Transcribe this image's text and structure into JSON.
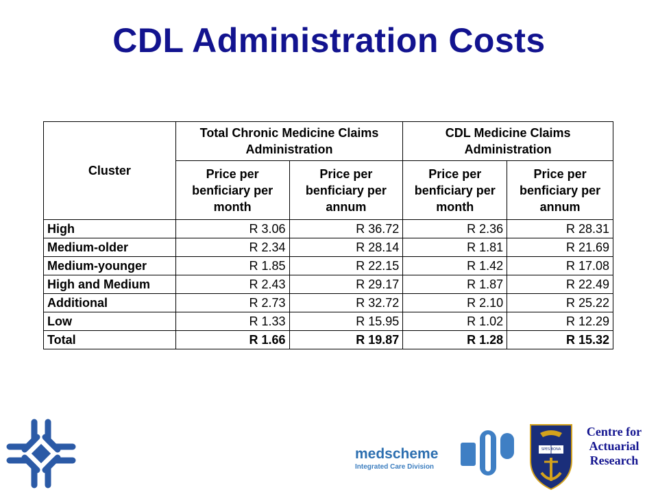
{
  "title": "CDL Administration Costs",
  "table": {
    "cluster_header": "Cluster",
    "groups": [
      "Total Chronic Medicine Claims Administration",
      "CDL Medicine Claims Administration"
    ],
    "subheaders": [
      "Price per benficiary per month",
      "Price per benficiary per annum",
      "Price per benficiary per month",
      "Price per benficiary per annum"
    ],
    "rows": [
      {
        "cluster": "High",
        "values": [
          "R 3.06",
          "R 36.72",
          "R 2.36",
          "R 28.31"
        ]
      },
      {
        "cluster": "Medium-older",
        "values": [
          "R 2.34",
          "R 28.14",
          "R 1.81",
          "R 21.69"
        ]
      },
      {
        "cluster": "Medium-younger",
        "values": [
          "R 1.85",
          "R 22.15",
          "R 1.42",
          "R 17.08"
        ]
      },
      {
        "cluster": "High and Medium",
        "values": [
          "R 2.43",
          "R 29.17",
          "R 1.87",
          "R 22.49"
        ]
      },
      {
        "cluster": "Additional",
        "values": [
          "R 2.73",
          "R 32.72",
          "R 2.10",
          "R 25.22"
        ]
      },
      {
        "cluster": "Low",
        "values": [
          "R 1.33",
          "R 15.95",
          "R 1.02",
          "R 12.29"
        ]
      },
      {
        "cluster": "Total",
        "values": [
          "R 1.66",
          "R 19.87",
          "R 1.28",
          "R 15.32"
        ]
      }
    ]
  },
  "logos": {
    "medscheme_name": "medscheme",
    "medscheme_sub": "Integrated Care Division",
    "crest_motto": "SPES BONA",
    "car_line1": "Centre for",
    "car_line2": "Actuarial",
    "car_line3": "Research"
  },
  "colors": {
    "title": "#12138f",
    "medscheme_blue": "#2d6fb0",
    "logo_blue": "#2b5aa6",
    "crest_blue": "#1a2e7a",
    "crest_gold": "#d4a21c"
  }
}
